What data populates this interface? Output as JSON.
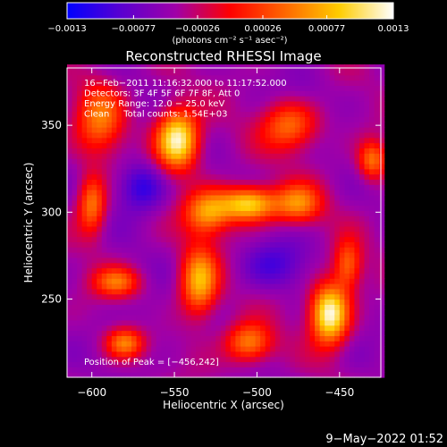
{
  "colorbar": {
    "ticks": [
      -0.0013,
      -0.00077,
      -0.00026,
      0.00026,
      0.00077,
      0.0013
    ],
    "tick_labels": [
      "−0.0013",
      "−0.00077",
      "−0.00026",
      "0.00026",
      "0.00077",
      "0.0013"
    ],
    "range": [
      -0.0013,
      0.0013
    ],
    "units_label": "(photons cm⁻² s⁻¹ asec⁻²)",
    "colormap": [
      "#0000ff",
      "#5a00d0",
      "#a000a8",
      "#ff0000",
      "#ff6600",
      "#ffcc00",
      "#ffffff"
    ]
  },
  "chart_data": {
    "type": "heatmap",
    "title": "Reconstructed RHESSI Image",
    "xlabel": "Heliocentric X (arcsec)",
    "ylabel": "Heliocentric Y (arcsec)",
    "xlim": [
      -615,
      -425
    ],
    "ylim": [
      205,
      383
    ],
    "x_ticks": [
      -600,
      -550,
      -500,
      -450
    ],
    "x_tick_labels": [
      "−600",
      "−550",
      "−500",
      "−450"
    ],
    "y_ticks": [
      250,
      300,
      350
    ],
    "y_tick_labels": [
      "250",
      "300",
      "350"
    ],
    "annotations": [
      "16−Feb−2011 11:16:32.000 to 11:17:52.000",
      "Detectors: 3F 4F 5F 6F 7F 8F, Att 0",
      "Energy Range: 12.0 − 25.0 keV",
      "Clean     Total counts: 1.54E+03"
    ],
    "peak_label": "Position of Peak = [−456,242]",
    "peak": [
      -456,
      242
    ],
    "sources": [
      {
        "x": -548,
        "y": 342,
        "value": 0.00125,
        "sx": 9,
        "sy": 12
      },
      {
        "x": -456,
        "y": 242,
        "value": 0.0013,
        "sx": 8,
        "sy": 12
      },
      {
        "x": -505,
        "y": 305,
        "value": 0.001,
        "sx": 12,
        "sy": 7
      },
      {
        "x": -530,
        "y": 300,
        "value": 0.0006,
        "sx": 10,
        "sy": 9
      },
      {
        "x": -535,
        "y": 260,
        "value": 0.0008,
        "sx": 8,
        "sy": 14
      },
      {
        "x": -595,
        "y": 355,
        "value": 0.00045,
        "sx": 10,
        "sy": 14
      },
      {
        "x": -600,
        "y": 305,
        "value": 0.00055,
        "sx": 6,
        "sy": 12
      },
      {
        "x": -585,
        "y": 260,
        "value": 0.0004,
        "sx": 10,
        "sy": 6
      },
      {
        "x": -480,
        "y": 350,
        "value": 0.00045,
        "sx": 12,
        "sy": 10
      },
      {
        "x": -475,
        "y": 305,
        "value": 0.0005,
        "sx": 10,
        "sy": 8
      },
      {
        "x": -445,
        "y": 270,
        "value": 0.0004,
        "sx": 6,
        "sy": 10
      },
      {
        "x": -505,
        "y": 225,
        "value": 0.0006,
        "sx": 10,
        "sy": 8
      },
      {
        "x": -580,
        "y": 225,
        "value": 0.0005,
        "sx": 8,
        "sy": 6
      },
      {
        "x": -430,
        "y": 330,
        "value": 0.0005,
        "sx": 6,
        "sy": 8
      },
      {
        "x": -570,
        "y": 315,
        "value": -0.0011,
        "sx": 10,
        "sy": 10
      },
      {
        "x": -490,
        "y": 270,
        "value": -0.0009,
        "sx": 14,
        "sy": 10
      },
      {
        "x": -470,
        "y": 370,
        "value": -0.0006,
        "sx": 10,
        "sy": 8
      },
      {
        "x": -565,
        "y": 240,
        "value": -0.0006,
        "sx": 10,
        "sy": 10
      },
      {
        "x": -440,
        "y": 215,
        "value": -0.0005,
        "sx": 8,
        "sy": 8
      }
    ]
  },
  "footer": {
    "date": "9−May−2022 01:52"
  }
}
